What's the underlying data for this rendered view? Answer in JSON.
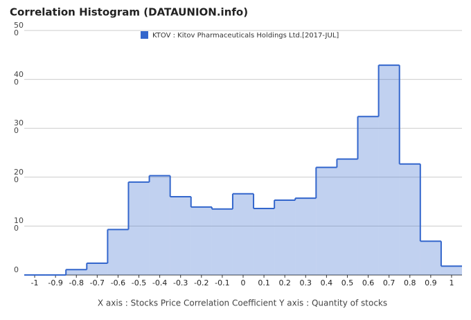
{
  "chart_data": {
    "type": "histogram",
    "title": "Correlation Histogram (DATAUNION.info)",
    "x_label": "X axis : Stocks Price Correlation Coefficient  Y axis : Quantity of stocks",
    "bins": [
      -1.05,
      -0.95,
      -0.85,
      -0.75,
      -0.65,
      -0.55,
      -0.45,
      -0.35,
      -0.25,
      -0.15,
      -0.05,
      0.05,
      0.15,
      0.25,
      0.35,
      0.45,
      0.55,
      0.65,
      0.75,
      0.85,
      0.95,
      1.05
    ],
    "series": [
      {
        "name": "KTOV : Kitov Pharmaceuticals Holdings Ltd.[2017-JUL]",
        "color": "#3366cc",
        "values": [
          0,
          0,
          11,
          24,
          93,
          190,
          203,
          160,
          139,
          135,
          166,
          136,
          153,
          157,
          220,
          237,
          324,
          429,
          227,
          69,
          18
        ]
      }
    ],
    "xlim": [
      -1.05,
      1.05
    ],
    "xticks": [
      -1,
      -0.9,
      -0.8,
      -0.7,
      -0.6,
      -0.5,
      -0.4,
      -0.3,
      -0.2,
      -0.1,
      0,
      0.1,
      0.2,
      0.3,
      0.4,
      0.5,
      0.6,
      0.7,
      0.8,
      0.9,
      1
    ],
    "ylim": [
      0,
      500
    ],
    "yticks": [
      0,
      100,
      200,
      300,
      400,
      500
    ],
    "grid": true
  }
}
